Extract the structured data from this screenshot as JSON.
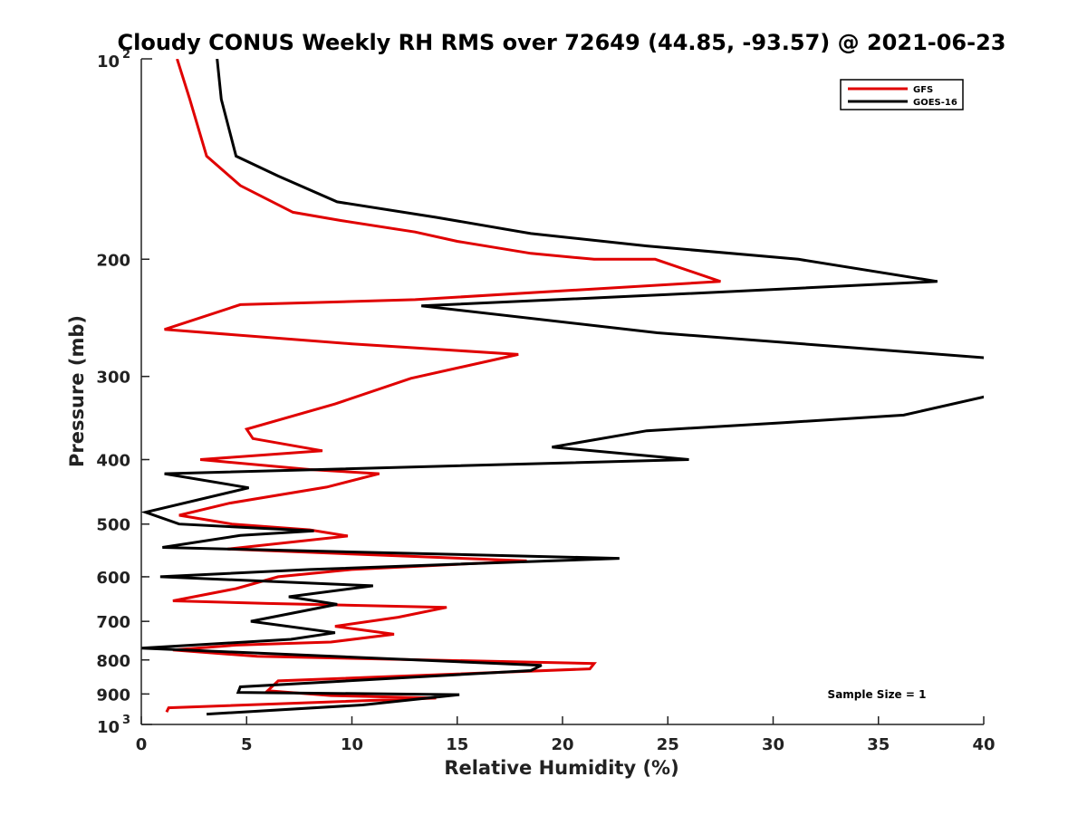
{
  "chart_data": {
    "type": "line",
    "title": "Cloudy CONUS Weekly RH RMS over 72649 (44.85, -93.57) @ 2021-06-23",
    "xlabel": "Relative Humidity (%)",
    "ylabel": "Pressure (mb)",
    "xlim": [
      0,
      40
    ],
    "ylim": [
      100,
      1000
    ],
    "yscale": "log",
    "y_reversed": true,
    "grid": false,
    "legend_position": "top-right",
    "x_ticks": [
      "0",
      "5",
      "10",
      "15",
      "20",
      "25",
      "30",
      "35",
      "40"
    ],
    "x_tick_values": [
      0,
      5,
      10,
      15,
      20,
      25,
      30,
      35,
      40
    ],
    "y_ticks": [
      {
        "value": 200,
        "label": "200"
      },
      {
        "value": 300,
        "label": "300"
      },
      {
        "value": 400,
        "label": "400"
      },
      {
        "value": 500,
        "label": "500"
      },
      {
        "value": 600,
        "label": "600"
      },
      {
        "value": 700,
        "label": "700"
      },
      {
        "value": 800,
        "label": "800"
      },
      {
        "value": 900,
        "label": "900"
      }
    ],
    "y_power_ticks": [
      {
        "value": 100,
        "base": "10",
        "exp": "2"
      },
      {
        "value": 1000,
        "base": "10",
        "exp": "3"
      }
    ],
    "annotation": "Sample Size = 1",
    "series": [
      {
        "name": "GFS",
        "color": "#e00000",
        "points": [
          {
            "rh": 1.7,
            "p": 100
          },
          {
            "rh": 2.3,
            "p": 115
          },
          {
            "rh": 3.1,
            "p": 140
          },
          {
            "rh": 4.7,
            "p": 155
          },
          {
            "rh": 7.2,
            "p": 170
          },
          {
            "rh": 9.5,
            "p": 175
          },
          {
            "rh": 13.0,
            "p": 182
          },
          {
            "rh": 15.0,
            "p": 188
          },
          {
            "rh": 18.5,
            "p": 196
          },
          {
            "rh": 21.5,
            "p": 200
          },
          {
            "rh": 24.4,
            "p": 200
          },
          {
            "rh": 27.5,
            "p": 216
          },
          {
            "rh": 13.0,
            "p": 230
          },
          {
            "rh": 4.7,
            "p": 234
          },
          {
            "rh": 1.1,
            "p": 255
          },
          {
            "rh": 10.0,
            "p": 268
          },
          {
            "rh": 17.9,
            "p": 278
          },
          {
            "rh": 12.8,
            "p": 302
          },
          {
            "rh": 9.2,
            "p": 330
          },
          {
            "rh": 5.0,
            "p": 360
          },
          {
            "rh": 5.3,
            "p": 372
          },
          {
            "rh": 8.6,
            "p": 388
          },
          {
            "rh": 2.8,
            "p": 400
          },
          {
            "rh": 8.0,
            "p": 414
          },
          {
            "rh": 11.3,
            "p": 420
          },
          {
            "rh": 8.8,
            "p": 440
          },
          {
            "rh": 4.2,
            "p": 465
          },
          {
            "rh": 1.8,
            "p": 485
          },
          {
            "rh": 4.3,
            "p": 500
          },
          {
            "rh": 8.0,
            "p": 510
          },
          {
            "rh": 9.8,
            "p": 521
          },
          {
            "rh": 4.1,
            "p": 545
          },
          {
            "rh": 18.3,
            "p": 568
          },
          {
            "rh": 10.0,
            "p": 585
          },
          {
            "rh": 6.5,
            "p": 600
          },
          {
            "rh": 4.5,
            "p": 625
          },
          {
            "rh": 1.5,
            "p": 652
          },
          {
            "rh": 6.0,
            "p": 658
          },
          {
            "rh": 14.5,
            "p": 667
          },
          {
            "rh": 12.2,
            "p": 690
          },
          {
            "rh": 9.2,
            "p": 712
          },
          {
            "rh": 12.0,
            "p": 732
          },
          {
            "rh": 9.0,
            "p": 752
          },
          {
            "rh": 4.5,
            "p": 760
          },
          {
            "rh": 1.5,
            "p": 773
          },
          {
            "rh": 5.5,
            "p": 790
          },
          {
            "rh": 21.5,
            "p": 810
          },
          {
            "rh": 21.3,
            "p": 825
          },
          {
            "rh": 6.5,
            "p": 860
          },
          {
            "rh": 6.0,
            "p": 890
          },
          {
            "rh": 9.0,
            "p": 905
          },
          {
            "rh": 14.0,
            "p": 913
          },
          {
            "rh": 1.3,
            "p": 944
          },
          {
            "rh": 1.2,
            "p": 958
          }
        ]
      },
      {
        "name": "GOES-16",
        "color": "#000000",
        "points": [
          {
            "rh": 3.6,
            "p": 100
          },
          {
            "rh": 3.8,
            "p": 115
          },
          {
            "rh": 4.5,
            "p": 140
          },
          {
            "rh": 6.5,
            "p": 150
          },
          {
            "rh": 9.3,
            "p": 164
          },
          {
            "rh": 14.0,
            "p": 173
          },
          {
            "rh": 18.5,
            "p": 183
          },
          {
            "rh": 24.0,
            "p": 191
          },
          {
            "rh": 31.2,
            "p": 200
          },
          {
            "rh": 37.8,
            "p": 216
          },
          {
            "rh": 25.0,
            "p": 226
          },
          {
            "rh": 13.3,
            "p": 235
          },
          {
            "rh": 24.5,
            "p": 258
          },
          {
            "rh": 40.5,
            "p": 282
          },
          {
            "rh": 40.5,
            "p": 318
          },
          {
            "rh": 40.0,
            "p": 322
          },
          {
            "rh": 36.2,
            "p": 343
          },
          {
            "rh": 30.5,
            "p": 352
          },
          {
            "rh": 24.0,
            "p": 362
          },
          {
            "rh": 19.5,
            "p": 383
          },
          {
            "rh": 26.0,
            "p": 400
          },
          {
            "rh": 1.1,
            "p": 420
          },
          {
            "rh": 5.1,
            "p": 441
          },
          {
            "rh": 0.2,
            "p": 480
          },
          {
            "rh": 1.8,
            "p": 500
          },
          {
            "rh": 8.2,
            "p": 512
          },
          {
            "rh": 4.7,
            "p": 520
          },
          {
            "rh": 1.0,
            "p": 542
          },
          {
            "rh": 22.7,
            "p": 563
          },
          {
            "rh": 8.0,
            "p": 585
          },
          {
            "rh": 0.9,
            "p": 600
          },
          {
            "rh": 11.0,
            "p": 619
          },
          {
            "rh": 7.0,
            "p": 643
          },
          {
            "rh": 9.3,
            "p": 660
          },
          {
            "rh": 5.2,
            "p": 700
          },
          {
            "rh": 9.2,
            "p": 728
          },
          {
            "rh": 7.1,
            "p": 745
          },
          {
            "rh": 0.0,
            "p": 768
          },
          {
            "rh": 19.0,
            "p": 815
          },
          {
            "rh": 18.5,
            "p": 830
          },
          {
            "rh": 4.7,
            "p": 878
          },
          {
            "rh": 4.6,
            "p": 895
          },
          {
            "rh": 15.1,
            "p": 902
          },
          {
            "rh": 10.5,
            "p": 935
          },
          {
            "rh": 3.1,
            "p": 965
          }
        ]
      }
    ]
  }
}
